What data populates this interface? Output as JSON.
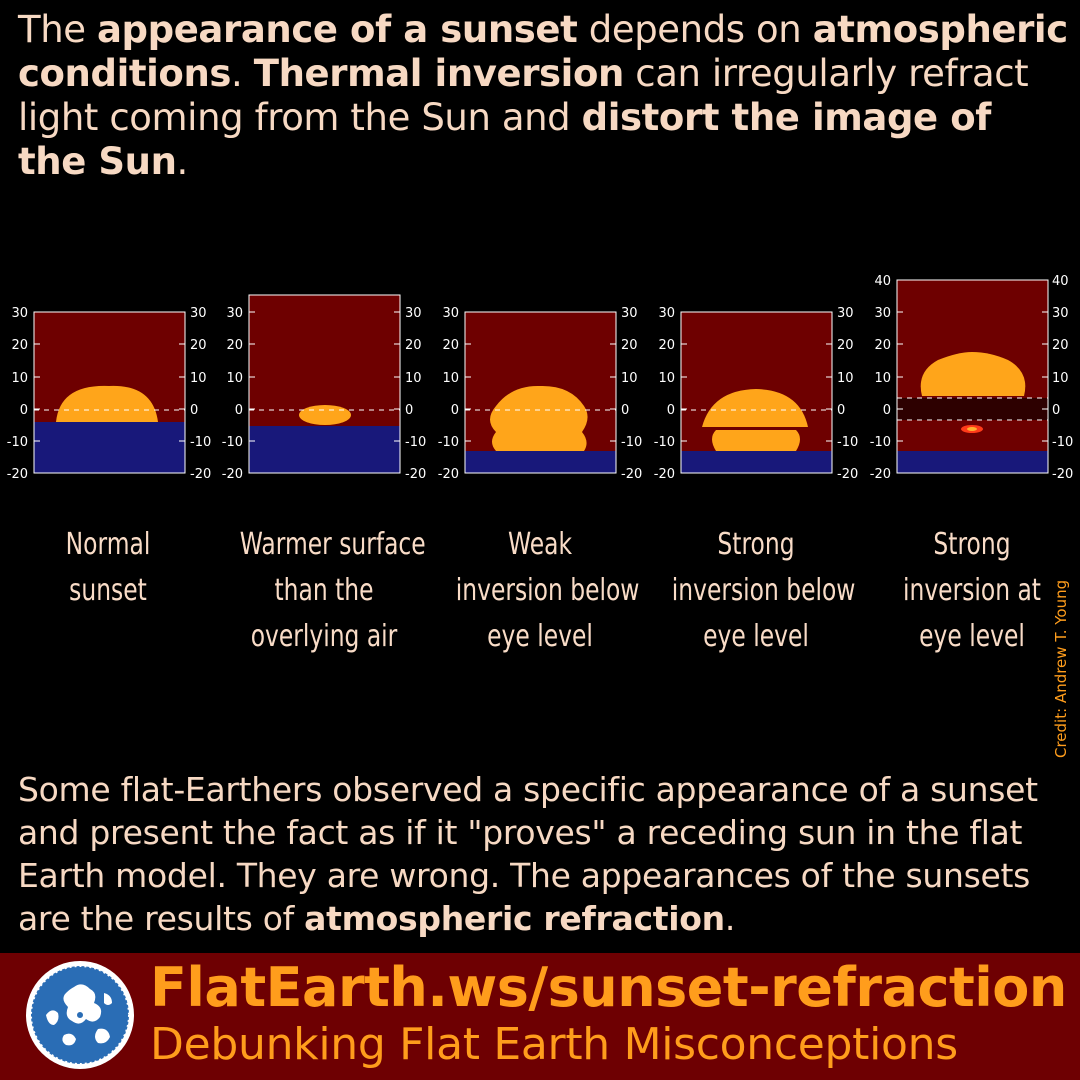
{
  "intro": {
    "t1": "The ",
    "b1": "appearance of a sunset",
    "t2": " depends on ",
    "b2": "atmospheric conditions",
    "t3": ". ",
    "b3": "Thermal inversion",
    "t4": " can irregularly refract light coming from the Sun and ",
    "b4": "distort the image of the Sun",
    "t5": "."
  },
  "figure": {
    "colors": {
      "sky": "#6e0000",
      "sea": "#18187a",
      "sun": "#ffa51a",
      "duct": "#2d0000",
      "flare": "#ff3b1a"
    },
    "panels": [
      {
        "caption": [
          "Normal",
          "sunset"
        ],
        "y_ticks": [
          "30",
          "20",
          "10",
          "0",
          "-10",
          "-20"
        ],
        "horizon_value": -4,
        "sun_shapes": [
          "cap"
        ]
      },
      {
        "caption": [
          "Warmer surface",
          "than the",
          "overlying air"
        ],
        "y_ticks": [
          "30",
          "20",
          "10",
          "0",
          "-10",
          "-20"
        ],
        "horizon_value": -6,
        "sun_shapes": [
          "flattened-ellipse"
        ]
      },
      {
        "caption": [
          "Weak",
          "inversion below",
          "eye level"
        ],
        "y_ticks": [
          "30",
          "20",
          "10",
          "0",
          "-10",
          "-20"
        ],
        "horizon_value": -13,
        "sun_shapes": [
          "stacked-dome"
        ]
      },
      {
        "caption": [
          "Strong",
          "inversion below",
          "eye level"
        ],
        "y_ticks": [
          "30",
          "20",
          "10",
          "0",
          "-10",
          "-20"
        ],
        "horizon_value": -13,
        "sun_shapes": [
          "dome",
          "lower-segment"
        ]
      },
      {
        "caption": [
          "Strong",
          "inversion at",
          "eye level"
        ],
        "y_ticks": [
          "40",
          "30",
          "20",
          "10",
          "0",
          "-10",
          "-20"
        ],
        "horizon_value": -13,
        "sun_shapes": [
          "dome",
          "duct-band",
          "flare"
        ]
      }
    ]
  },
  "credit": "Credit: Andrew T. Young",
  "outro": {
    "t1": "Some flat-Earthers observed a specific appearance of a sunset and present the fact as if it \"proves\" a receding sun in the flat Earth model. They are wrong. The appearances of the sunsets are the results of ",
    "b1": "atmospheric refraction",
    "t2": "."
  },
  "footer": {
    "url": "FlatEarth.ws/sunset-refraction",
    "tagline": "Debunking Flat Earth Misconceptions",
    "logo_icon": "globe-icon",
    "background": "#6e0002",
    "accent": "#ff9d1c"
  }
}
